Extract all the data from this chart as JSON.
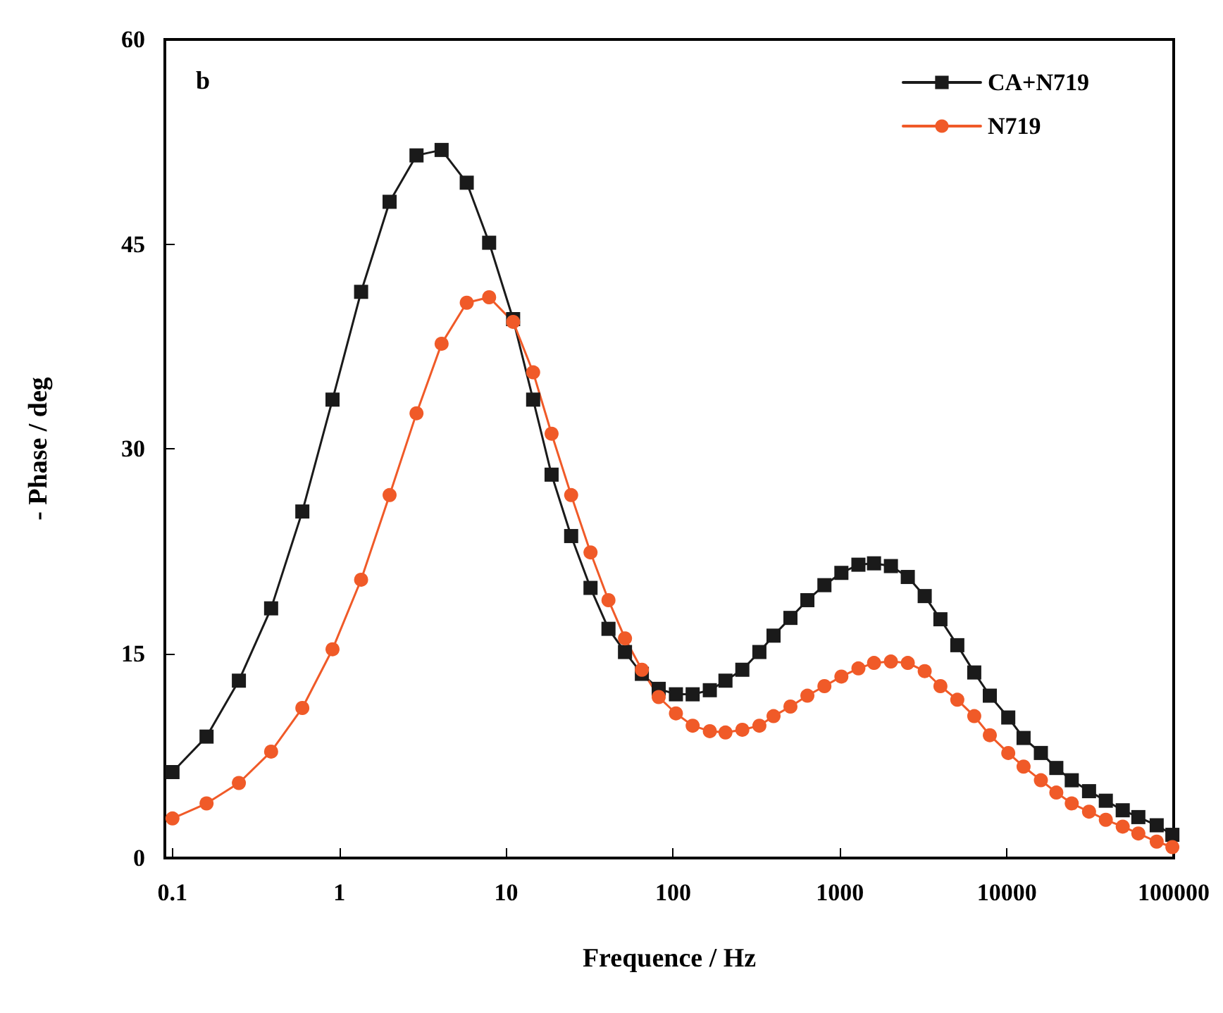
{
  "chart_data": {
    "type": "line",
    "xlabel": "Frequence / Hz",
    "ylabel": "- Phase / deg",
    "annotations": [
      "b"
    ],
    "x": [
      0.1,
      0.16,
      0.25,
      0.39,
      0.6,
      0.91,
      1.35,
      2.0,
      2.9,
      4.1,
      5.8,
      7.9,
      11,
      14.5,
      18.7,
      24.5,
      32,
      41,
      51.5,
      65,
      82,
      104,
      131,
      166,
      206,
      260,
      329,
      400,
      505,
      638,
      807,
      1020,
      1290,
      1600,
      2020,
      2550,
      3220,
      4000,
      5050,
      6380,
      7910,
      10200,
      12600,
      16000,
      19800,
      24500,
      31100,
      39200,
      49500,
      61400,
      79100,
      98200
    ],
    "series": [
      {
        "name": "CA+N719",
        "color": "#1a1a1a",
        "marker": "square",
        "values": [
          6.3,
          8.9,
          13.0,
          18.3,
          25.4,
          33.6,
          41.5,
          48.1,
          51.5,
          51.9,
          49.5,
          45.1,
          39.5,
          33.6,
          28.1,
          23.6,
          19.8,
          16.8,
          15.1,
          13.5,
          12.4,
          12.0,
          12.0,
          12.3,
          13.0,
          13.8,
          15.1,
          16.3,
          17.6,
          18.9,
          20.0,
          20.9,
          21.5,
          21.6,
          21.4,
          20.6,
          19.2,
          17.5,
          15.6,
          13.6,
          11.9,
          10.3,
          8.8,
          7.7,
          6.6,
          5.7,
          4.9,
          4.2,
          3.5,
          3.0,
          2.4,
          1.7
        ]
      },
      {
        "name": "N719",
        "color": "#f05a28",
        "marker": "circle",
        "values": [
          2.9,
          4.0,
          5.5,
          7.8,
          11.0,
          15.3,
          20.4,
          26.6,
          32.6,
          37.7,
          40.7,
          41.1,
          39.3,
          35.6,
          31.1,
          26.6,
          22.4,
          18.9,
          16.1,
          13.8,
          11.8,
          10.6,
          9.7,
          9.3,
          9.2,
          9.4,
          9.7,
          10.4,
          11.1,
          11.9,
          12.6,
          13.3,
          13.9,
          14.3,
          14.4,
          14.3,
          13.7,
          12.6,
          11.6,
          10.4,
          9.0,
          7.7,
          6.7,
          5.7,
          4.8,
          4.0,
          3.4,
          2.8,
          2.3,
          1.8,
          1.2,
          0.8
        ]
      }
    ],
    "log": "x",
    "xlim": [
      0.09,
      100000
    ],
    "xticks": [
      0.1,
      1,
      10,
      100,
      1000,
      10000,
      100000
    ],
    "ylim": [
      0,
      60
    ],
    "yticks": [
      0,
      15,
      30,
      45,
      60
    ],
    "grid": false,
    "legend": "top right",
    "line_style": "solid"
  }
}
